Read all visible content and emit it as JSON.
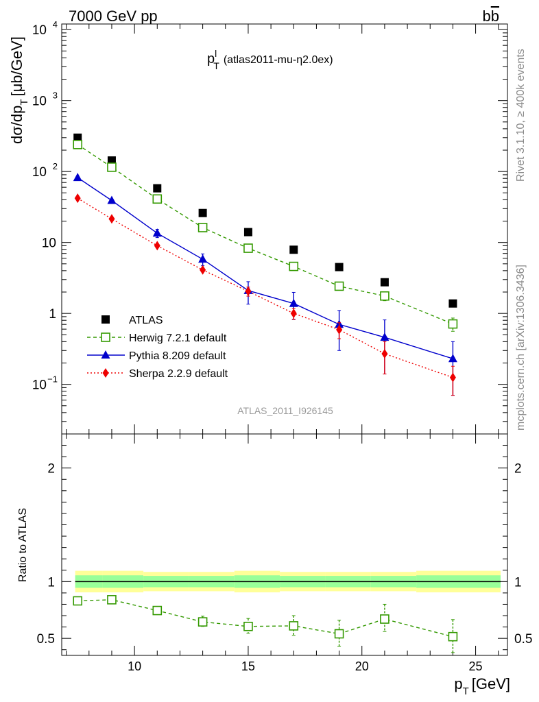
{
  "header": {
    "left": "7000 GeV pp",
    "right_base": "b",
    "right_bar": "b"
  },
  "side_labels": {
    "rivet": "Rivet 3.1.10, ≥ 400k events",
    "mcplots": "mcplots.cern.ch [arXiv:1306.3436]"
  },
  "chart_data": [
    {
      "type": "scatter",
      "panel": "main",
      "title_main": "p",
      "title_sup": "l",
      "title_sub": "T",
      "title_suffix": "(atlas2011-mu-η2.0ex)",
      "watermark": "ATLAS_2011_I926145",
      "ylabel": "dσ/dp",
      "ylabel_sub": "T",
      "ylabel_unit": "[μb/GeV]",
      "yscale": "log",
      "xlim": [
        6.8,
        26.4
      ],
      "ylim": [
        0.02,
        12000
      ],
      "yticks": [
        {
          "value": 0.1,
          "base": "10",
          "exp": "−1"
        },
        {
          "value": 1,
          "base": "1",
          "exp": ""
        },
        {
          "value": 10,
          "base": "10",
          "exp": ""
        },
        {
          "value": 100,
          "base": "10",
          "exp": "2"
        },
        {
          "value": 1000,
          "base": "10",
          "exp": "3"
        },
        {
          "value": 10000,
          "base": "10",
          "exp": "4"
        }
      ],
      "x": [
        7.5,
        9,
        11,
        13,
        15,
        17,
        19,
        21,
        24
      ],
      "series": [
        {
          "name": "ATLAS",
          "color": "#000000",
          "marker": "square-filled",
          "line": "none",
          "values": [
            300,
            143,
            58,
            26,
            14,
            7.9,
            4.5,
            2.75,
            1.38
          ]
        },
        {
          "name": "Herwig 7.2.1 default",
          "color": "#339900",
          "marker": "square-open",
          "line": "dashed",
          "values": [
            240,
            115,
            41,
            16.2,
            8.3,
            4.6,
            2.42,
            1.76,
            0.71
          ],
          "err_low": [
            0,
            0,
            0,
            0,
            0,
            0,
            0.3,
            0.25,
            0.15
          ],
          "err_high": [
            0,
            0,
            0,
            0,
            0,
            0,
            0.3,
            0.25,
            0.15
          ]
        },
        {
          "name": "Pythia 8.209 default",
          "color": "#0000cc",
          "marker": "triangle",
          "line": "solid",
          "values": [
            82,
            39,
            13.5,
            5.8,
            2.1,
            1.38,
            0.7,
            0.46,
            0.23
          ],
          "err_low": [
            0,
            0,
            1.8,
            1.1,
            0.75,
            0.55,
            0.4,
            0.32,
            0.16
          ],
          "err_high": [
            0,
            0,
            1.8,
            1.1,
            0.7,
            0.6,
            0.4,
            0.35,
            0.17
          ]
        },
        {
          "name": "Sherpa 2.2.9 default",
          "color": "#ee0000",
          "marker": "diamond",
          "line": "dotted",
          "values": [
            42,
            21.5,
            9.0,
            4.1,
            2.05,
            1.0,
            0.59,
            0.27,
            0.125
          ],
          "err_low": [
            0,
            0,
            0,
            0,
            0.3,
            0.18,
            0.15,
            0.13,
            0.055
          ],
          "err_high": [
            0,
            0,
            0,
            0,
            0.3,
            0.18,
            0.15,
            0.13,
            0.055
          ]
        }
      ]
    },
    {
      "type": "scatter",
      "panel": "ratio",
      "ylabel": "Ratio to ATLAS",
      "xlabel": "p",
      "xlabel_sub": "T",
      "xlabel_unit": "[GeV]",
      "xlim": [
        6.8,
        26.4
      ],
      "ylim": [
        0.35,
        2.3
      ],
      "xticks": [
        10,
        15,
        20,
        25
      ],
      "yticks": [
        0.5,
        1,
        2
      ],
      "bands": {
        "bins": [
          [
            7,
            8.2
          ],
          [
            8.2,
            10
          ],
          [
            10,
            12
          ],
          [
            12,
            14
          ],
          [
            14,
            16
          ],
          [
            16,
            18
          ],
          [
            18,
            20
          ],
          [
            20,
            22
          ],
          [
            22,
            26
          ]
        ],
        "inner": [
          0.055,
          0.055,
          0.05,
          0.05,
          0.055,
          0.05,
          0.05,
          0.05,
          0.055
        ],
        "outer": [
          0.095,
          0.095,
          0.085,
          0.085,
          0.095,
          0.085,
          0.085,
          0.085,
          0.095
        ],
        "inner_color": "#99ff99",
        "outer_color": "#ffff99"
      },
      "x": [
        7.5,
        9,
        11,
        13,
        15,
        17,
        19,
        21,
        24
      ],
      "series": [
        {
          "name": "Herwig 7.2.1 default",
          "color": "#339900",
          "marker": "square-open",
          "line": "dashed",
          "values": [
            0.83,
            0.84,
            0.745,
            0.645,
            0.605,
            0.61,
            0.54,
            0.67,
            0.515
          ],
          "err_low": [
            0,
            0,
            0.015,
            0.04,
            0.06,
            0.085,
            0.11,
            0.11,
            0.14
          ],
          "err_high": [
            0,
            0,
            0.015,
            0.05,
            0.07,
            0.09,
            0.12,
            0.13,
            0.15
          ]
        }
      ]
    }
  ]
}
